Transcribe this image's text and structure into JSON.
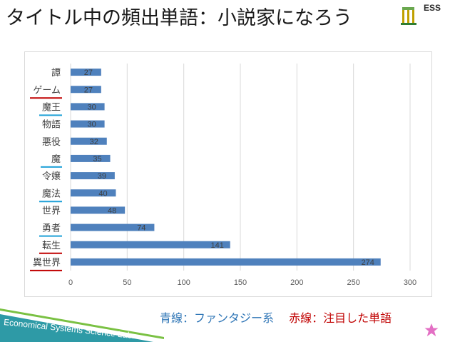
{
  "slide": {
    "title": "タイトル中の頻出単語：小説家になろう",
    "caption_blue": "青線：ファンタジー系",
    "caption_red": "赤線：注目した単語",
    "logo_text": "ESS",
    "footer_text": "Economical Systems Science Lab."
  },
  "colors": {
    "bar": "#4f81bd",
    "blue_underline": "#1fa1d8",
    "red_underline": "#c00000",
    "grid": "#d9d9d9"
  },
  "chart_data": {
    "type": "bar",
    "orientation": "horizontal",
    "categories": [
      "譚",
      "ゲーム",
      "魔王",
      "物語",
      "悪役",
      "魔",
      "令嬢",
      "魔法",
      "世界",
      "勇者",
      "転生",
      "異世界"
    ],
    "values": [
      27,
      27,
      30,
      30,
      32,
      35,
      39,
      40,
      48,
      74,
      141,
      274
    ],
    "underline": [
      "none",
      "red",
      "blue",
      "none",
      "none",
      "blue",
      "none",
      "blue",
      "none",
      "blue",
      "red",
      "red"
    ],
    "xlim": [
      0,
      300
    ],
    "xticks": [
      "0",
      "50",
      "100",
      "150",
      "200",
      "250",
      "300"
    ],
    "grid": true,
    "legend": "none"
  }
}
